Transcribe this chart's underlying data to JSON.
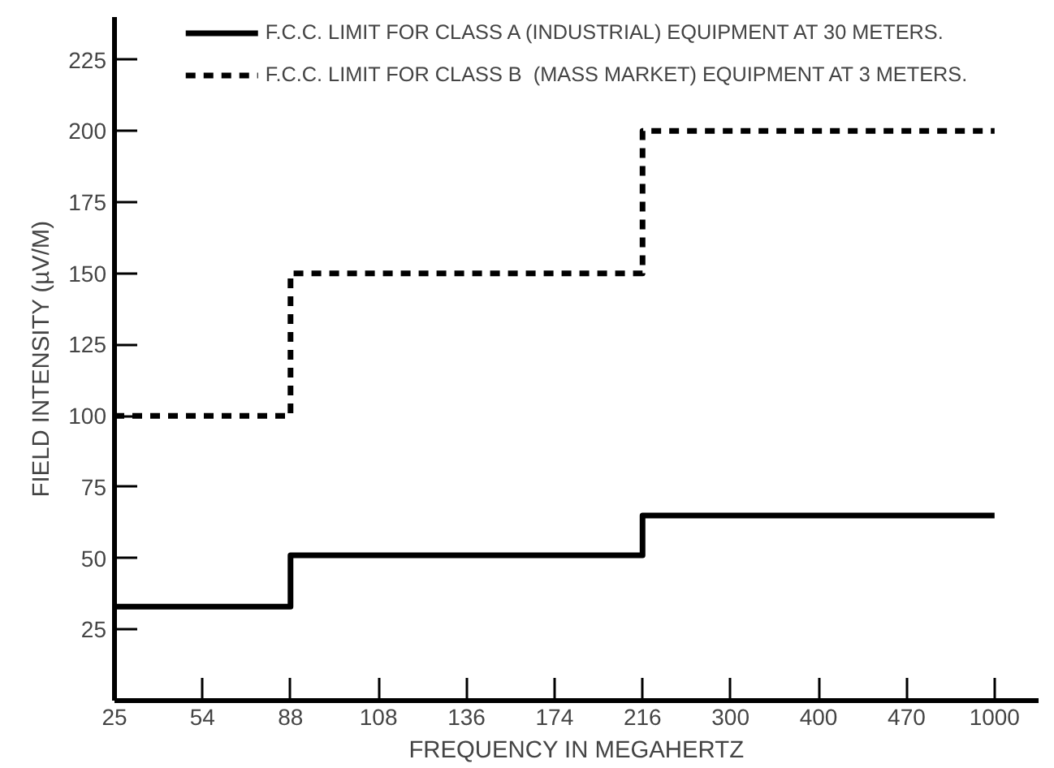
{
  "chart_data": {
    "type": "step",
    "xlabel": "FREQUENCY IN MEGAHERTZ",
    "ylabel": "FIELD INTENSITY (µV/M)",
    "categories": [
      "25",
      "54",
      "88",
      "108",
      "136",
      "174",
      "216",
      "300",
      "400",
      "470",
      "1000"
    ],
    "series": [
      {
        "name": "F.C.C. LIMIT FOR CLASS A (INDUSTRIAL) EQUIPMENT AT 30 METERS.",
        "color": "#000000",
        "line_style": "solid",
        "values": [
          33,
          33,
          51,
          51,
          51,
          51,
          65,
          65,
          65,
          65,
          65
        ]
      },
      {
        "name": "F.C.C. LIMIT FOR CLASS B  (MASS MARKET) EQUIPMENT AT 3 METERS.",
        "color": "#000000",
        "line_style": "dashed",
        "values": [
          100,
          100,
          150,
          150,
          150,
          150,
          200,
          200,
          200,
          200,
          200
        ]
      }
    ],
    "ylim": [
      0,
      240
    ],
    "yticks": [
      25,
      50,
      75,
      100,
      125,
      150,
      175,
      200,
      225
    ],
    "grid": false,
    "legend": "top",
    "marker": "none"
  }
}
